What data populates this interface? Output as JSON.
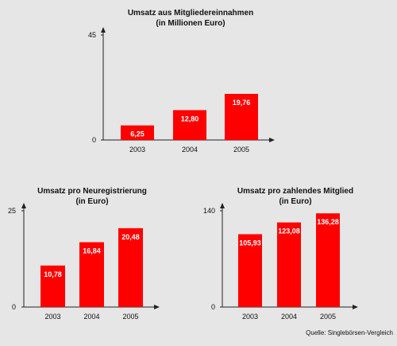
{
  "colors": {
    "bar": "#ff0000",
    "axis": "#222222",
    "background": "#e6e6e6"
  },
  "source_text": "Quelle: Singlebörsen-Vergleich",
  "chart_data": [
    {
      "type": "bar",
      "title": "Umsatz aus Mitgliedereinnahmen",
      "subtitle": "(in Millionen Euro)",
      "categories": [
        "2003",
        "2004",
        "2005"
      ],
      "values": [
        6.25,
        12.8,
        19.76
      ],
      "value_labels": [
        "6,25",
        "12,80",
        "19,76"
      ],
      "ylim": [
        0,
        45
      ],
      "yticks": [
        "0",
        "45"
      ],
      "grid": false
    },
    {
      "type": "bar",
      "title": "Umsatz pro Neuregistrierung",
      "subtitle": "(in Euro)",
      "categories": [
        "2003",
        "2004",
        "2005"
      ],
      "values": [
        10.78,
        16.84,
        20.48
      ],
      "value_labels": [
        "10,78",
        "16,84",
        "20,48"
      ],
      "ylim": [
        0,
        25
      ],
      "yticks": [
        "0",
        "25"
      ],
      "grid": false
    },
    {
      "type": "bar",
      "title": "Umsatz pro zahlendes Mitglied",
      "subtitle": "(in Euro)",
      "categories": [
        "2003",
        "2004",
        "2005"
      ],
      "values": [
        105.93,
        123.08,
        136.28
      ],
      "value_labels": [
        "105,93",
        "123,08",
        "136,28"
      ],
      "ylim": [
        0,
        140
      ],
      "yticks": [
        "0",
        "140"
      ],
      "grid": false
    }
  ]
}
